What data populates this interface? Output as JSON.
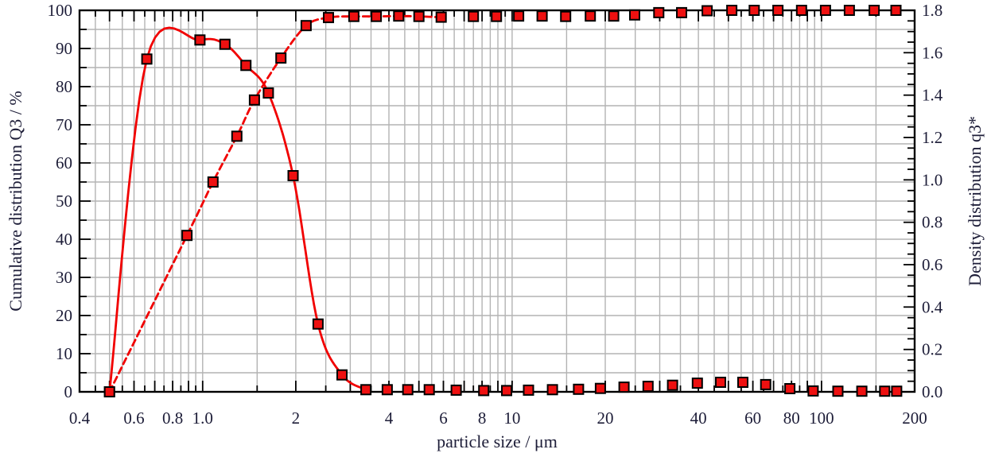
{
  "figure": {
    "x_axis": {
      "label": "particle size / μm",
      "scale": "log",
      "min": 0.4,
      "max": 200,
      "tick_values": [
        0.4,
        0.6,
        0.8,
        1.0,
        2,
        4,
        6,
        8,
        10,
        20,
        40,
        60,
        80,
        100,
        200
      ],
      "tick_labels": [
        "0.4",
        "0.6",
        "0.8",
        "1.0",
        "2",
        "4",
        "6",
        "8",
        "10",
        "20",
        "40",
        "60",
        "80",
        "100",
        "200"
      ]
    },
    "y_left": {
      "label": "Cumulative distribution Q3 / %",
      "min": 0,
      "max": 100,
      "major_step": 10,
      "minor_step": 5,
      "tick_labels": [
        "0",
        "10",
        "20",
        "30",
        "40",
        "50",
        "60",
        "70",
        "80",
        "90",
        "100"
      ]
    },
    "y_right": {
      "label": "Density distribution q3*",
      "min": 0,
      "max": 1.8,
      "major_step": 0.2,
      "minor_step": 0.05,
      "tick_labels": [
        "0.0",
        "0.2",
        "0.4",
        "0.6",
        "0.8",
        "1.0",
        "1.2",
        "1.4",
        "1.6",
        "1.8"
      ]
    },
    "colors": {
      "curve_red": "#f10000",
      "marker_fill": "#ee1010",
      "marker_edge": "#000000",
      "grid": "#b3b3b3",
      "axis": "#000000",
      "text": "#1d1d38",
      "background": "#ffffff"
    },
    "grid": "on",
    "legend": "none"
  },
  "chart_data": {
    "type": "line",
    "title": "",
    "xlabel": "particle size / μm",
    "ylabel_left": "Cumulative distribution Q3 / %",
    "ylabel_right": "Density distribution q3*",
    "x_scale": "log",
    "xlim": [
      0.4,
      200
    ],
    "ylim_left": [
      0,
      100
    ],
    "ylim_right": [
      0,
      1.8
    ],
    "series": [
      {
        "name": "Cumulative distribution Q3",
        "axis": "left",
        "style": "dashed",
        "marker": "square",
        "line_points": 13,
        "x": [
          0.5,
          0.89,
          1.08,
          1.29,
          1.47,
          1.79,
          2.16,
          2.55,
          3.08,
          3.64,
          4.3,
          5.0,
          5.9,
          7.5,
          8.9,
          10.5,
          12.5,
          14.9,
          17.9,
          21.3,
          24.9,
          29.8,
          35.3,
          42.7,
          51.3,
          60.6,
          72.3,
          86.2,
          103,
          123,
          148,
          174
        ],
        "y": [
          0,
          41,
          55,
          67,
          76.5,
          87.5,
          96,
          98.1,
          98.4,
          98.4,
          98.5,
          98.4,
          98.2,
          98.4,
          98.4,
          98.5,
          98.5,
          98.4,
          98.5,
          98.5,
          98.8,
          99.4,
          99.4,
          99.9,
          100,
          100,
          100,
          100,
          100,
          100,
          100,
          100
        ]
      },
      {
        "name": "Density distribution q3*",
        "axis": "right",
        "style": "solid",
        "marker": "square",
        "line_points": 10,
        "x": [
          0.5,
          0.66,
          0.98,
          1.18,
          1.38,
          1.63,
          1.96,
          2.36,
          2.82,
          3.37,
          3.95,
          4.6,
          5.4,
          6.6,
          8.1,
          9.6,
          11.3,
          13.5,
          16.4,
          19.3,
          23,
          27.5,
          33,
          39.7,
          47.2,
          55.7,
          66,
          79,
          94,
          113,
          135,
          160,
          175
        ],
        "y": [
          0,
          1.57,
          1.66,
          1.64,
          1.54,
          1.41,
          1.02,
          0.32,
          0.08,
          0.01,
          0.01,
          0.01,
          0.01,
          0.008,
          0.006,
          0.006,
          0.008,
          0.01,
          0.012,
          0.016,
          0.022,
          0.026,
          0.031,
          0.041,
          0.045,
          0.045,
          0.034,
          0.015,
          0.004,
          0.003,
          0.003,
          0.003,
          0.003
        ]
      }
    ]
  }
}
